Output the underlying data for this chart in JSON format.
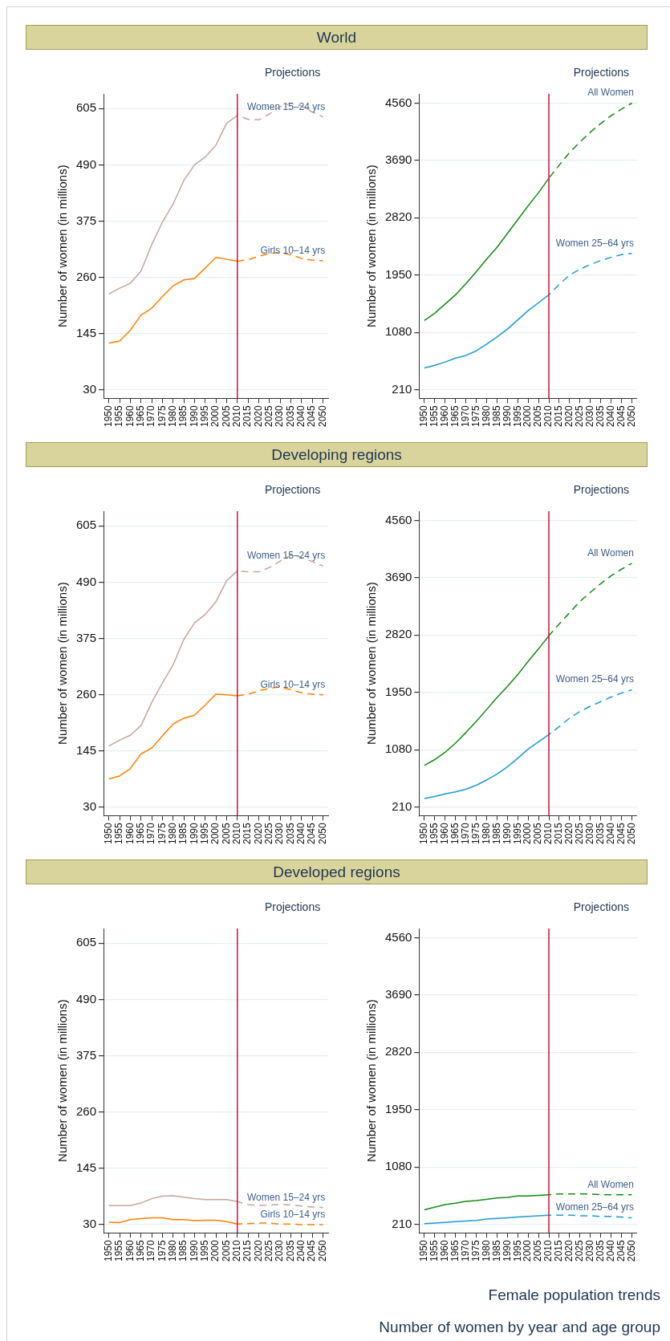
{
  "chart_data": [
    {
      "type": "line",
      "title": "World",
      "ylabel": "Number of women (in millions)",
      "annotations": [
        "Projections"
      ],
      "categories": [
        "1950",
        "1955",
        "1960",
        "1965",
        "1970",
        "1975",
        "1980",
        "1985",
        "1990",
        "1995",
        "2000",
        "2005",
        "2010",
        "2015",
        "2020",
        "2025",
        "2030",
        "2035",
        "2040",
        "2045",
        "2050"
      ],
      "ylim": [
        13,
        635
      ],
      "yticks": [
        30,
        145,
        260,
        375,
        490,
        605
      ],
      "grid": "y",
      "ref_lines": [
        {
          "axis": "x",
          "value": "2010",
          "color": "#d0103a"
        }
      ],
      "series": [
        {
          "color": "#c4a69e",
          "values": [
            226,
            238,
            248,
            273,
            327,
            373,
            410,
            458,
            490,
            506,
            530,
            575,
            591,
            null,
            null,
            null,
            null,
            null,
            null,
            null,
            null
          ]
        },
        {
          "name": "Women 15–24 yrs",
          "color": "#c4a69e",
          "line_style": "dashed",
          "values": [
            null,
            null,
            null,
            null,
            null,
            null,
            null,
            null,
            null,
            null,
            null,
            null,
            591,
            583,
            582,
            594,
            609,
            616,
            610,
            598,
            588
          ]
        },
        {
          "color": "#ff8000",
          "values": [
            126,
            130,
            152,
            183,
            197,
            221,
            243,
            255,
            258,
            279,
            301,
            297,
            293,
            null,
            null,
            null,
            null,
            null,
            null,
            null,
            null
          ]
        },
        {
          "name": "Girls 10–14 yrs",
          "color": "#ff8000",
          "line_style": "dashed",
          "values": [
            null,
            null,
            null,
            null,
            null,
            null,
            null,
            null,
            null,
            null,
            null,
            null,
            293,
            296,
            303,
            309,
            311,
            306,
            299,
            295,
            294
          ]
        }
      ]
    },
    {
      "type": "line",
      "ylabel": "Number of women (in millions)",
      "annotations": [
        "Projections"
      ],
      "categories": [
        "1950",
        "1955",
        "1960",
        "1965",
        "1970",
        "1975",
        "1980",
        "1985",
        "1990",
        "1995",
        "2000",
        "2005",
        "2010",
        "2015",
        "2020",
        "2025",
        "2030",
        "2035",
        "2040",
        "2045",
        "2050"
      ],
      "ylim": [
        80,
        4700
      ],
      "yticks": [
        210,
        1080,
        1950,
        2820,
        3690,
        4560
      ],
      "grid": "y",
      "ref_lines": [
        {
          "axis": "x",
          "value": "2010",
          "color": "#d0103a"
        }
      ],
      "series": [
        {
          "color": "#138a13",
          "values": [
            1260,
            1370,
            1510,
            1650,
            1820,
            2000,
            2190,
            2370,
            2580,
            2790,
            3000,
            3200,
            3420,
            null,
            null,
            null,
            null,
            null,
            null,
            null,
            null
          ]
        },
        {
          "name": "All Women",
          "color": "#138a13",
          "line_style": "dashed",
          "values": [
            null,
            null,
            null,
            null,
            null,
            null,
            null,
            null,
            null,
            null,
            null,
            null,
            3420,
            3620,
            3810,
            3970,
            4120,
            4250,
            4370,
            4470,
            4560
          ]
        },
        {
          "color": "#1a9bd1",
          "values": [
            540,
            580,
            630,
            690,
            730,
            800,
            900,
            1010,
            1130,
            1270,
            1410,
            1530,
            1650,
            null,
            null,
            null,
            null,
            null,
            null,
            null,
            null
          ]
        },
        {
          "name": "Women 25–64 yrs",
          "color": "#1a9bd1",
          "line_style": "dashed",
          "values": [
            null,
            null,
            null,
            null,
            null,
            null,
            null,
            null,
            null,
            null,
            null,
            null,
            1650,
            1810,
            1950,
            2040,
            2110,
            2170,
            2220,
            2260,
            2280
          ]
        }
      ]
    },
    {
      "type": "line",
      "title": "Developing regions",
      "ylabel": "Number of women (in millions)",
      "annotations": [
        "Projections"
      ],
      "categories": [
        "1950",
        "1955",
        "1960",
        "1965",
        "1970",
        "1975",
        "1980",
        "1985",
        "1990",
        "1995",
        "2000",
        "2005",
        "2010",
        "2015",
        "2020",
        "2025",
        "2030",
        "2035",
        "2040",
        "2045",
        "2050"
      ],
      "ylim": [
        13,
        635
      ],
      "yticks": [
        30,
        145,
        260,
        375,
        490,
        605
      ],
      "grid": "y",
      "ref_lines": [
        {
          "axis": "x",
          "value": "2010",
          "color": "#d0103a"
        }
      ],
      "series": [
        {
          "color": "#c4a69e",
          "values": [
            155,
            167,
            177,
            197,
            244,
            284,
            321,
            373,
            407,
            424,
            450,
            493,
            513,
            null,
            null,
            null,
            null,
            null,
            null,
            null,
            null
          ]
        },
        {
          "name": "Women 15–24 yrs",
          "color": "#c4a69e",
          "line_style": "dashed",
          "values": [
            null,
            null,
            null,
            null,
            null,
            null,
            null,
            null,
            null,
            null,
            null,
            null,
            513,
            511,
            511,
            520,
            533,
            545,
            541,
            532,
            523
          ]
        },
        {
          "color": "#ff8000",
          "values": [
            88,
            94,
            109,
            139,
            151,
            176,
            200,
            212,
            218,
            239,
            261,
            260,
            258,
            null,
            null,
            null,
            null,
            null,
            null,
            null,
            null
          ]
        },
        {
          "name": "Girls 10–14 yrs",
          "color": "#ff8000",
          "line_style": "dashed",
          "values": [
            null,
            null,
            null,
            null,
            null,
            null,
            null,
            null,
            null,
            null,
            null,
            null,
            258,
            261,
            268,
            273,
            276,
            270,
            264,
            261,
            260
          ]
        }
      ]
    },
    {
      "type": "line",
      "ylabel": "Number of women (in millions)",
      "annotations": [
        "Projections"
      ],
      "categories": [
        "1950",
        "1955",
        "1960",
        "1965",
        "1970",
        "1975",
        "1980",
        "1985",
        "1990",
        "1995",
        "2000",
        "2005",
        "2010",
        "2015",
        "2020",
        "2025",
        "2030",
        "2035",
        "2040",
        "2045",
        "2050"
      ],
      "ylim": [
        80,
        4700
      ],
      "yticks": [
        210,
        1080,
        1950,
        2820,
        3690,
        4560
      ],
      "grid": "y",
      "ref_lines": [
        {
          "axis": "x",
          "value": "2010",
          "color": "#d0103a"
        }
      ],
      "series": [
        {
          "color": "#138a13",
          "values": [
            840,
            930,
            1040,
            1180,
            1340,
            1510,
            1690,
            1870,
            2040,
            2220,
            2420,
            2610,
            2810,
            null,
            null,
            null,
            null,
            null,
            null,
            null,
            null
          ]
        },
        {
          "name": "All Women",
          "color": "#138a13",
          "line_style": "dashed",
          "values": [
            null,
            null,
            null,
            null,
            null,
            null,
            null,
            null,
            null,
            null,
            null,
            null,
            2810,
            2990,
            3160,
            3330,
            3470,
            3600,
            3720,
            3820,
            3910
          ]
        },
        {
          "color": "#1a9bd1",
          "values": [
            340,
            370,
            410,
            440,
            480,
            540,
            620,
            710,
            820,
            950,
            1090,
            1200,
            1310,
            null,
            null,
            null,
            null,
            null,
            null,
            null,
            null
          ]
        },
        {
          "name": "Women 25–64 yrs",
          "color": "#1a9bd1",
          "line_style": "dashed",
          "values": [
            null,
            null,
            null,
            null,
            null,
            null,
            null,
            null,
            null,
            null,
            null,
            null,
            1310,
            1430,
            1560,
            1660,
            1740,
            1810,
            1880,
            1940,
            1990
          ]
        }
      ]
    },
    {
      "type": "line",
      "title": "Developed regions",
      "ylabel": "Number of women (in millions)",
      "annotations": [
        "Projections"
      ],
      "categories": [
        "1950",
        "1955",
        "1960",
        "1965",
        "1970",
        "1975",
        "1980",
        "1985",
        "1990",
        "1995",
        "2000",
        "2005",
        "2010",
        "2015",
        "2020",
        "2025",
        "2030",
        "2035",
        "2040",
        "2045",
        "2050"
      ],
      "ylim": [
        13,
        635
      ],
      "yticks": [
        30,
        145,
        260,
        375,
        490,
        605
      ],
      "grid": "y",
      "ref_lines": [
        {
          "axis": "x",
          "value": "2010",
          "color": "#d0103a"
        }
      ],
      "series": [
        {
          "color": "#c4a69e",
          "values": [
            69,
            69,
            69,
            74,
            83,
            88,
            89,
            86,
            83,
            81,
            81,
            81,
            77,
            null,
            null,
            null,
            null,
            null,
            null,
            null,
            null
          ]
        },
        {
          "name": "Women 15–24 yrs",
          "color": "#c4a69e",
          "line_style": "dashed",
          "values": [
            null,
            null,
            null,
            null,
            null,
            null,
            null,
            null,
            null,
            null,
            null,
            null,
            77,
            71,
            69,
            70,
            71,
            70,
            68,
            66,
            65
          ]
        },
        {
          "color": "#ff8000",
          "values": [
            35,
            34,
            40,
            42,
            44,
            44,
            40,
            40,
            38,
            39,
            39,
            36,
            31,
            null,
            null,
            null,
            null,
            null,
            null,
            null,
            null
          ]
        },
        {
          "name": "Girls 10–14 yrs",
          "color": "#ff8000",
          "line_style": "dashed",
          "values": [
            null,
            null,
            null,
            null,
            null,
            null,
            null,
            null,
            null,
            null,
            null,
            null,
            31,
            32,
            33,
            33,
            31,
            31,
            30,
            30,
            30
          ]
        }
      ]
    },
    {
      "type": "line",
      "ylabel": "Number of women (in millions)",
      "annotations": [
        "Projections",
        "Female population trends",
        "Number of women by year and age group"
      ],
      "categories": [
        "1950",
        "1955",
        "1960",
        "1965",
        "1970",
        "1975",
        "1980",
        "1985",
        "1990",
        "1995",
        "2000",
        "2005",
        "2010",
        "2015",
        "2020",
        "2025",
        "2030",
        "2035",
        "2040",
        "2045",
        "2050"
      ],
      "ylim": [
        80,
        4700
      ],
      "yticks": [
        210,
        1080,
        1950,
        2820,
        3690,
        4560
      ],
      "grid": "y",
      "ref_lines": [
        {
          "axis": "x",
          "value": "2010",
          "color": "#d0103a"
        }
      ],
      "series": [
        {
          "color": "#138a13",
          "values": [
            430,
            470,
            510,
            530,
            560,
            570,
            590,
            610,
            620,
            640,
            640,
            650,
            660,
            null,
            null,
            null,
            null,
            null,
            null,
            null,
            null
          ]
        },
        {
          "name": "All Women",
          "color": "#138a13",
          "line_style": "dashed",
          "values": [
            null,
            null,
            null,
            null,
            null,
            null,
            null,
            null,
            null,
            null,
            null,
            null,
            660,
            670,
            670,
            670,
            670,
            660,
            660,
            660,
            660
          ]
        },
        {
          "color": "#1a9bd1",
          "values": [
            220,
            230,
            240,
            250,
            260,
            270,
            290,
            300,
            310,
            320,
            330,
            340,
            350,
            null,
            null,
            null,
            null,
            null,
            null,
            null,
            null
          ]
        },
        {
          "name": "Women 25–64 yrs",
          "color": "#1a9bd1",
          "line_style": "dashed",
          "values": [
            null,
            null,
            null,
            null,
            null,
            null,
            null,
            null,
            null,
            null,
            null,
            null,
            350,
            350,
            350,
            340,
            340,
            330,
            330,
            320,
            310
          ]
        }
      ]
    }
  ]
}
